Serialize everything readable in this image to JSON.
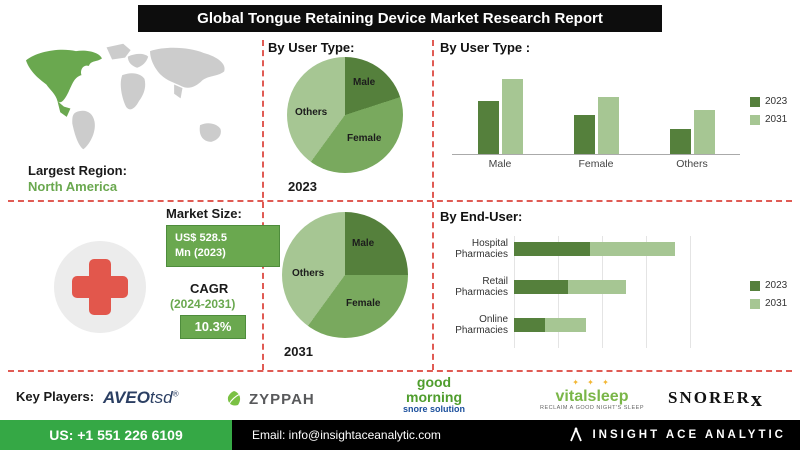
{
  "header": {
    "title": "Global Tongue Retaining Device Market Research Report"
  },
  "map_section": {
    "label": "Largest Region:",
    "region": "North America"
  },
  "market_size": {
    "heading": "Market Size:",
    "value_line1": "US$ 528.5",
    "value_line2": "Mn (2023)",
    "cagr_label": "CAGR",
    "cagr_period": "(2024-2031)",
    "cagr_value": "10.3%"
  },
  "colors": {
    "series_2023": "#55803c",
    "series_2031": "#a6c693",
    "pie_female": "#79a95e",
    "accent_green": "#6aa84f",
    "dashed_red": "#e05b54",
    "footer_green": "#35a845",
    "cross_red": "#e2574c"
  },
  "chart_data": [
    {
      "id": "pie_2023",
      "type": "pie",
      "title": "By User Type:",
      "year_label": "2023",
      "slices": [
        {
          "label": "Male",
          "value": 20,
          "color": "#55803c"
        },
        {
          "label": "Female",
          "value": 40,
          "color": "#79a95e"
        },
        {
          "label": "Others",
          "value": 40,
          "color": "#a6c693"
        }
      ]
    },
    {
      "id": "pie_2031",
      "type": "pie",
      "title": "By User Type:",
      "year_label": "2031",
      "slices": [
        {
          "label": "Male",
          "value": 25,
          "color": "#55803c"
        },
        {
          "label": "Female",
          "value": 35,
          "color": "#79a95e"
        },
        {
          "label": "Others",
          "value": 40,
          "color": "#a6c693"
        }
      ]
    },
    {
      "id": "user_type_bar",
      "type": "bar",
      "title": "By User Type :",
      "categories": [
        "Male",
        "Female",
        "Others"
      ],
      "ylim": [
        0,
        100
      ],
      "legend_position": "right",
      "grid": false,
      "series": [
        {
          "name": "2023",
          "color": "#55803c",
          "values": [
            58,
            42,
            27
          ]
        },
        {
          "name": "2031",
          "color": "#a6c693",
          "values": [
            82,
            62,
            48
          ]
        }
      ]
    },
    {
      "id": "end_user_bar",
      "type": "bar",
      "orientation": "horizontal",
      "title": "By End-User:",
      "categories": [
        "Hospital Pharmacies",
        "Retail Pharmacies",
        "Online Pharmacies"
      ],
      "xlim": [
        0,
        100
      ],
      "legend_position": "right",
      "grid": true,
      "series": [
        {
          "name": "2023",
          "color": "#55803c",
          "values": [
            42,
            30,
            17
          ]
        },
        {
          "name": "2031",
          "color": "#a6c693",
          "values": [
            47,
            32,
            23
          ]
        }
      ]
    }
  ],
  "key_players": {
    "label": "Key Players:",
    "aveotsd": {
      "bold": "AVEO",
      "light": "tsd",
      "reg": "®"
    },
    "zyppah": {
      "text": "ZYPPAH"
    },
    "good_morning": {
      "line1": "good",
      "line2": "morning",
      "line3": "snore solution"
    },
    "vitalsleep": {
      "stars": "✦ ✦ ✦",
      "text": "vitalsleep",
      "tagline": "RECLAIM A GOOD NIGHT'S SLEEP"
    },
    "snorerx": {
      "main": "SNORER",
      "x": "x"
    }
  },
  "footer": {
    "phone": "US: +1 551 226 6109",
    "email": "Email: info@insightaceanalytic.com",
    "brand": "INSIGHT ACE ANALYTIC"
  }
}
